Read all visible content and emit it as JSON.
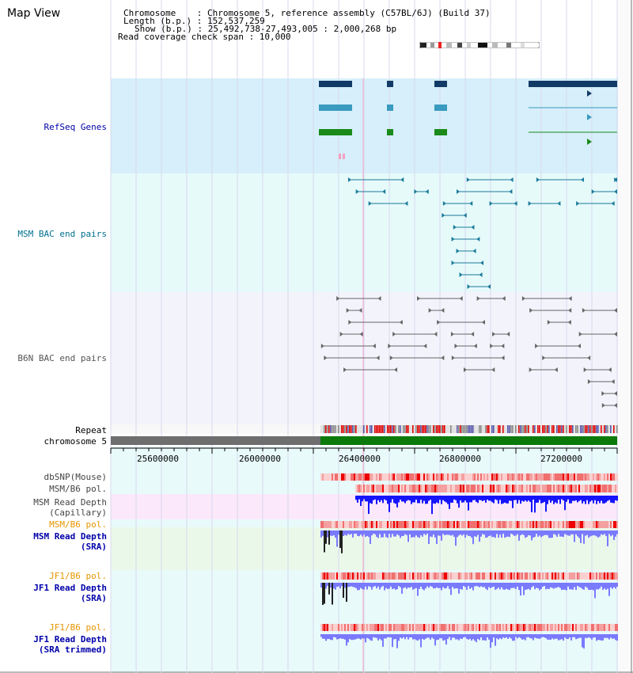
{
  "header": {
    "title": "Map View",
    "chromosome_line": "Chromosome    : Chromosome 5, reference assembly (C57BL/6J) (Build 37)",
    "length_line": "Length (b.p.) : 152,537,259",
    "show_line": "Show (b.p.) : 25,492,738-27,493,005 : 2,000,268 bp",
    "span_line": "Read coverage check span : 10,000"
  },
  "tracks": {
    "refseq": "RefSeq Genes",
    "msm_bac": "MSM BAC end pairs",
    "b6n_bac": "B6N BAC end pairs",
    "repeat": "Repeat",
    "chromosome": "chromosome 5",
    "dbsnp": "dbSNP(Mouse)",
    "msm_b6_pol_1": "MSM/B6 pol.",
    "msm_read_cap_1": "MSM Read Depth",
    "msm_read_cap_2": "(Capillary)",
    "msm_b6_pol_2": "MSM/B6 pol.",
    "msm_read_sra_1": "MSM Read Depth",
    "msm_read_sra_2": "(SRA)",
    "jf1_b6_pol_1": "JF1/B6 pol.",
    "jf1_read_sra_1": "JF1 Read Depth",
    "jf1_read_sra_2": "(SRA)",
    "jf1_b6_pol_2": "JF1/B6 pol.",
    "jf1_trim_1": "JF1 Read Depth",
    "jf1_trim_2": "(SRA trimmed)"
  },
  "axis": {
    "ticks": [
      "25600000",
      "26000000",
      "26400000",
      "26800000",
      "27200000"
    ]
  },
  "colors": {
    "refseq_bg": "#d6effa",
    "msm_bg": "#e6fafa",
    "b6n_bg": "#f3f3fb",
    "chrom_green": "#0b7a0b",
    "chrom_gray": "#6e6e6e",
    "depth_blue": "#1414ff",
    "depth_light": "#7a7aff",
    "label_blue": "#0000aa",
    "label_orange": "#e69500",
    "label_teal": "#006f8f"
  }
}
